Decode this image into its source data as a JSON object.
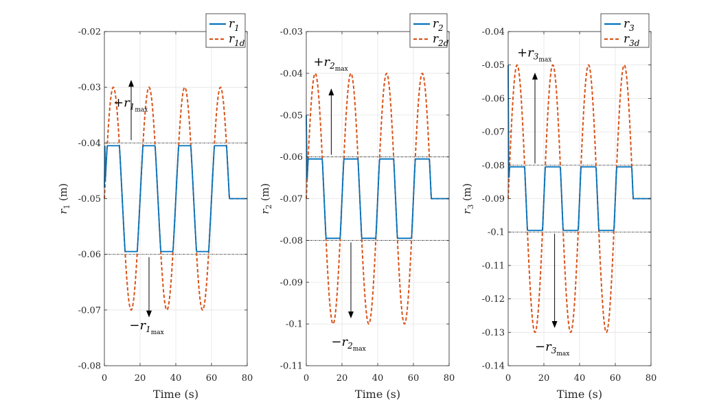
{
  "chart_data": [
    {
      "type": "line",
      "xlabel": "Time (s)",
      "ylabel": "r1 (m)",
      "ylabel_var": "r",
      "ylabel_sub": "1",
      "ylabel_unit": " (m)",
      "xlim": [
        0,
        80
      ],
      "ylim": [
        -0.08,
        -0.02
      ],
      "xticks": [
        0,
        20,
        40,
        60,
        80
      ],
      "xtick_labels": [
        "0",
        "20",
        "40",
        "60",
        "80"
      ],
      "yticks": [
        -0.08,
        -0.07,
        -0.06,
        -0.05,
        -0.04,
        -0.03,
        -0.02
      ],
      "ytick_labels": [
        "-0.08",
        "-0.07",
        "-0.06",
        "-0.05",
        "-0.04",
        "-0.03",
        "-0.02"
      ],
      "grid": true,
      "legend_position": "top-right",
      "series": [
        {
          "name": "r1",
          "name_var": "r",
          "name_sub": "1",
          "color": "#0072BD",
          "style": "solid",
          "role": "actual"
        },
        {
          "name": "r1d",
          "name_var": "r",
          "name_sub": "1d",
          "color": "#D95319",
          "style": "dashed",
          "role": "desired"
        }
      ],
      "params": {
        "center": -0.05,
        "amplitude": 0.02,
        "period": 20,
        "phase_t": 0,
        "sine_end": 70,
        "initial_value": -0.048,
        "sat_upper": -0.0405,
        "sat_lower": -0.0595
      },
      "limits": [
        -0.04,
        -0.06
      ],
      "annotations": [
        {
          "label": "+r1max",
          "sign": "+",
          "var": "r",
          "sub": "1",
          "subsub": "max",
          "text_x": 5,
          "text_y": -0.0335,
          "arrow_x": 15,
          "arrow_from": -0.0395,
          "arrow_to": -0.0288
        },
        {
          "label": "−r1max",
          "sign": "−",
          "var": "r",
          "sub": "1",
          "subsub": "max",
          "text_x": 14,
          "text_y": -0.0735,
          "arrow_x": 25,
          "arrow_from": -0.0605,
          "arrow_to": -0.0712
        }
      ]
    },
    {
      "type": "line",
      "xlabel": "Time (s)",
      "ylabel": "r2 (m)",
      "ylabel_var": "r",
      "ylabel_sub": "2",
      "ylabel_unit": " (m)",
      "xlim": [
        0,
        80
      ],
      "ylim": [
        -0.11,
        -0.03
      ],
      "xticks": [
        0,
        20,
        40,
        60,
        80
      ],
      "xtick_labels": [
        "0",
        "20",
        "40",
        "60",
        "80"
      ],
      "yticks": [
        -0.11,
        -0.1,
        -0.09,
        -0.08,
        -0.07,
        -0.06,
        -0.05,
        -0.04,
        -0.03
      ],
      "ytick_labels": [
        "-0.11",
        "-0.1",
        "-0.09",
        "-0.08",
        "-0.07",
        "-0.06",
        "-0.05",
        "-0.04",
        "-0.03"
      ],
      "grid": true,
      "legend_position": "top-right",
      "series": [
        {
          "name": "r2",
          "name_var": "r",
          "name_sub": "2",
          "color": "#0072BD",
          "style": "solid",
          "role": "actual"
        },
        {
          "name": "r2d",
          "name_var": "r",
          "name_sub": "2d",
          "color": "#D95319",
          "style": "dashed",
          "role": "desired"
        }
      ],
      "params": {
        "center": -0.07,
        "amplitude": 0.03,
        "period": 20,
        "phase_t": 0,
        "sine_end": 70,
        "initial_value": -0.05,
        "sat_upper": -0.0605,
        "sat_lower": -0.0795
      },
      "limits": [
        -0.06,
        -0.08
      ],
      "annotations": [
        {
          "label": "+r2max",
          "sign": "+",
          "var": "r",
          "sub": "2",
          "subsub": "max",
          "text_x": 4,
          "text_y": -0.0382,
          "arrow_x": 14,
          "arrow_from": -0.0595,
          "arrow_to": -0.0438
        },
        {
          "label": "−r2max",
          "sign": "−",
          "var": "r",
          "sub": "2",
          "subsub": "max",
          "text_x": 14,
          "text_y": -0.1052,
          "arrow_x": 25,
          "arrow_from": -0.0805,
          "arrow_to": -0.0985
        }
      ]
    },
    {
      "type": "line",
      "xlabel": "Time (s)",
      "ylabel": "r3 (m)",
      "ylabel_var": "r",
      "ylabel_sub": "3",
      "ylabel_unit": " (m)",
      "xlim": [
        0,
        80
      ],
      "ylim": [
        -0.14,
        -0.04
      ],
      "xticks": [
        0,
        20,
        40,
        60,
        80
      ],
      "xtick_labels": [
        "0",
        "20",
        "40",
        "60",
        "80"
      ],
      "yticks": [
        -0.14,
        -0.13,
        -0.12,
        -0.11,
        -0.1,
        -0.09,
        -0.08,
        -0.07,
        -0.06,
        -0.05,
        -0.04
      ],
      "ytick_labels": [
        "-0.14",
        "-0.13",
        "-0.12",
        "-0.11",
        "-0.1",
        "-0.09",
        "-0.08",
        "-0.07",
        "-0.06",
        "-0.05",
        "-0.04"
      ],
      "grid": true,
      "legend_position": "top-right",
      "series": [
        {
          "name": "r3",
          "name_var": "r",
          "name_sub": "3",
          "color": "#0072BD",
          "style": "solid",
          "role": "actual"
        },
        {
          "name": "r3d",
          "name_var": "r",
          "name_sub": "3d",
          "color": "#D95319",
          "style": "dashed",
          "role": "desired"
        }
      ],
      "params": {
        "center": -0.09,
        "amplitude": 0.04,
        "period": 20,
        "phase_t": 0,
        "sine_end": 70,
        "initial_value": -0.05,
        "sat_upper": -0.0805,
        "sat_lower": -0.0995
      },
      "limits": [
        -0.08,
        -0.1
      ],
      "annotations": [
        {
          "label": "+r3max",
          "sign": "+",
          "var": "r",
          "sub": "3",
          "subsub": "max",
          "text_x": 5,
          "text_y": -0.0475,
          "arrow_x": 15,
          "arrow_from": -0.0795,
          "arrow_to": -0.0525
        },
        {
          "label": "−r3max",
          "sign": "−",
          "var": "r",
          "sub": "3",
          "subsub": "max",
          "text_x": 15,
          "text_y": -0.1355,
          "arrow_x": 26,
          "arrow_from": -0.1005,
          "arrow_to": -0.1285
        }
      ]
    }
  ]
}
